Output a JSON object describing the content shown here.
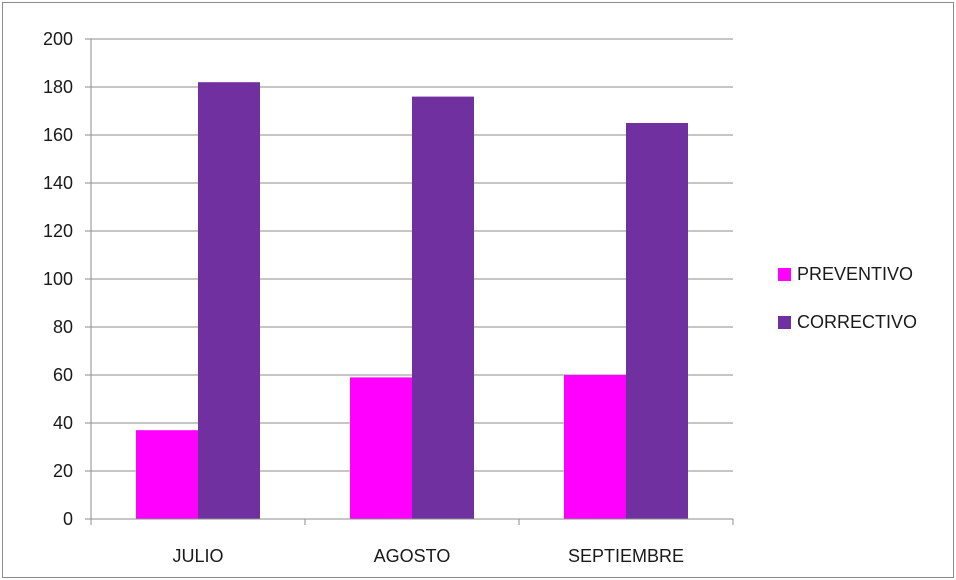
{
  "chart_data": {
    "type": "bar",
    "title": "",
    "xlabel": "",
    "ylabel": "",
    "categories": [
      "JULIO",
      "AGOSTO",
      "SEPTIEMBRE"
    ],
    "series": [
      {
        "name": "PREVENTIVO",
        "values": [
          37,
          59,
          60
        ],
        "color": "#ff00ff"
      },
      {
        "name": "CORRECTIVO",
        "values": [
          182,
          176,
          165
        ],
        "color": "#7030a0"
      }
    ],
    "ylim": [
      0,
      200
    ],
    "yticks": [
      "0",
      "20",
      "40",
      "60",
      "80",
      "100",
      "120",
      "140",
      "160",
      "180",
      "200"
    ],
    "grid": true,
    "legend_position": "right"
  }
}
